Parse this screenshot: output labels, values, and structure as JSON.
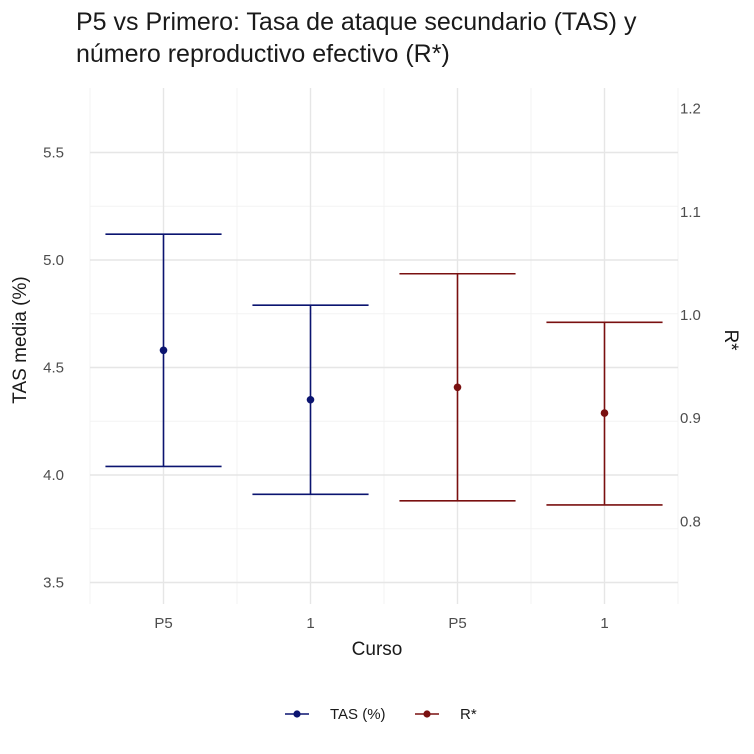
{
  "title": {
    "line1": "P5 vs Primero: Tasa de ataque secundario (TAS) y",
    "line2": "número reproductivo efectivo (R*)"
  },
  "chart_data": {
    "type": "errorbar",
    "xlabel": "Curso",
    "ylabel_left": "TAS media (%)",
    "ylabel_right": "R*",
    "categories": [
      "P5",
      "1",
      "P5",
      "1"
    ],
    "ylim_left": [
      3.4,
      5.8
    ],
    "ylim_right": [
      0.72,
      1.22
    ],
    "yticks_left": [
      3.5,
      4.0,
      4.5,
      5.0,
      5.5
    ],
    "yticks_right": [
      0.8,
      0.9,
      1.0,
      1.1,
      1.2
    ],
    "grid": true,
    "legend_position": "bottom",
    "series": [
      {
        "name": "TAS (%)",
        "axis": "left",
        "color": "#0b1470",
        "points": [
          {
            "category_index": 0,
            "mean": 4.58,
            "lower": 4.04,
            "upper": 5.12
          },
          {
            "category_index": 1,
            "mean": 4.35,
            "lower": 3.91,
            "upper": 4.79
          }
        ]
      },
      {
        "name": "R*",
        "axis": "right",
        "color": "#7a1010",
        "points": [
          {
            "category_index": 2,
            "mean": 0.93,
            "lower": 0.82,
            "upper": 1.04
          },
          {
            "category_index": 3,
            "mean": 0.905,
            "lower": 0.816,
            "upper": 0.993
          }
        ]
      }
    ]
  }
}
